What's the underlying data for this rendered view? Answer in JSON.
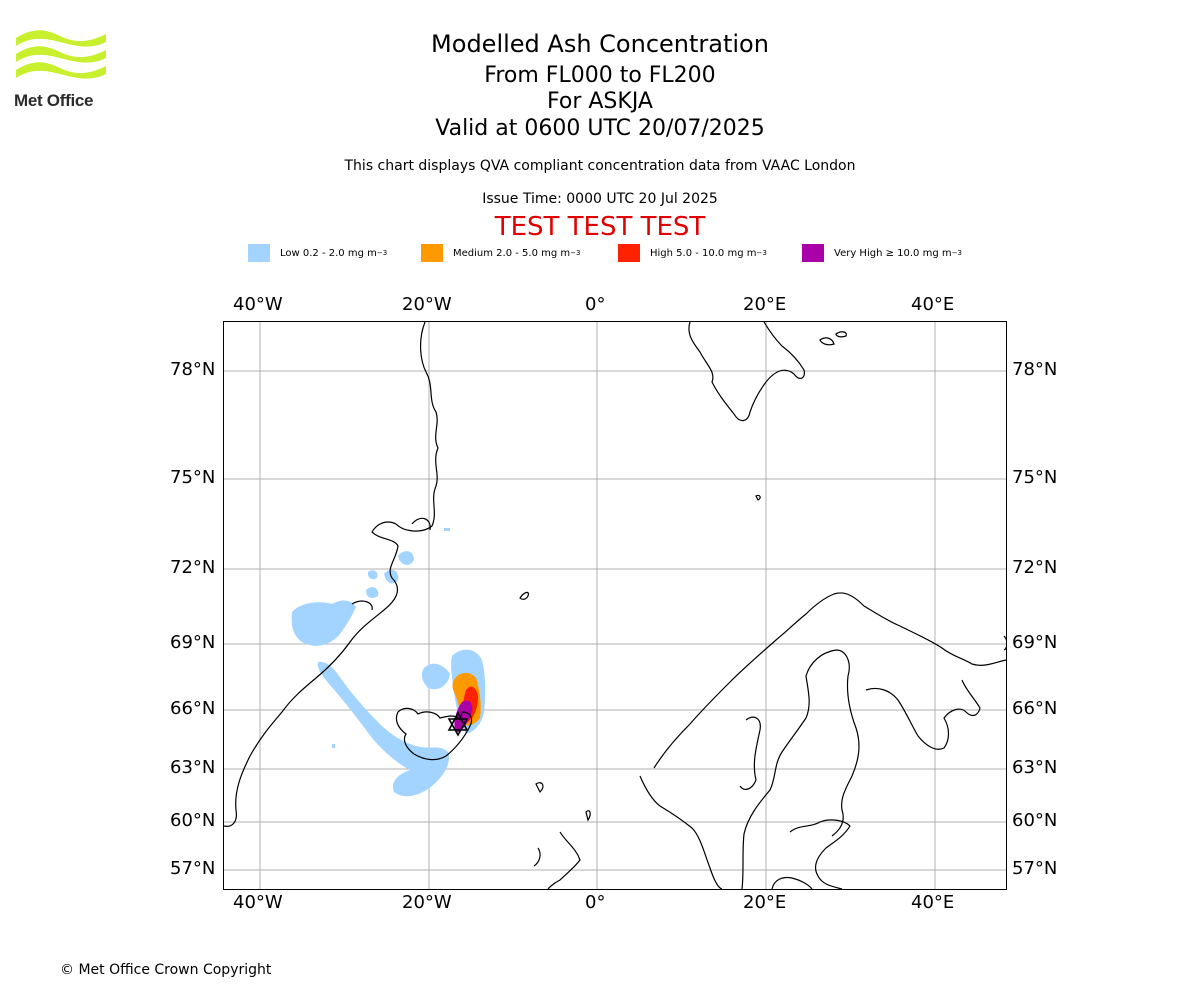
{
  "header": {
    "title": "Modelled Ash Concentration",
    "levels": "From FL000 to FL200",
    "volcano": "For ASKJA",
    "valid": "Valid at 0600 UTC 20/07/2025",
    "description": "This chart displays QVA compliant concentration data from VAAC London",
    "issue_time": "Issue Time: 0000 UTC 20 Jul 2025",
    "banner": "TEST TEST TEST"
  },
  "logo": {
    "text": "Met Office",
    "color": "#c8f02c"
  },
  "legend": [
    {
      "label": "Low 0.2 - 2.0 mg m",
      "unit_exp": "−3",
      "color": "#a3d4ff"
    },
    {
      "label": "Medium 2.0 - 5.0 mg m",
      "unit_exp": "−3",
      "color": "#ff9900"
    },
    {
      "label": "High 5.0 - 10.0 mg m",
      "unit_exp": "−3",
      "color": "#ff2200"
    },
    {
      "label": "Very High ≥ 10.0 mg m",
      "unit_exp": "−3",
      "color": "#aa00aa"
    }
  ],
  "map": {
    "lon_ticks": [
      "40°W",
      "20°W",
      "0°",
      "20°E",
      "40°E"
    ],
    "lat_ticks": [
      "78°N",
      "75°N",
      "72°N",
      "69°N",
      "66°N",
      "63°N",
      "60°N",
      "57°N"
    ],
    "grid": true,
    "gridline_color": "#b0b0b0",
    "coastline_color": "#000000"
  },
  "footer": {
    "copyright": "© Met Office Crown Copyright"
  }
}
